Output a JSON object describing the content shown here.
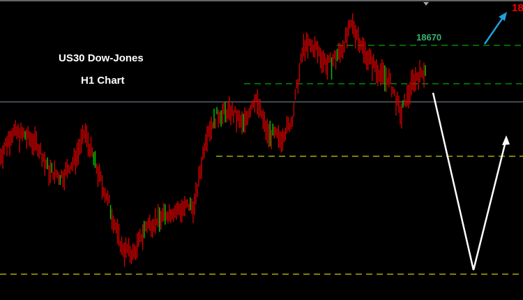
{
  "chart_data": {
    "type": "candlestick",
    "symbol_label": "US30 Dow-Jones",
    "timeframe_label": "H1 Chart",
    "ylim": [
      17210,
      18930
    ],
    "price_path_keypoints": [
      18050,
      18190,
      18170,
      18130,
      17970,
      17930,
      18010,
      18190,
      17970,
      17770,
      17530,
      17490,
      17650,
      17690,
      17730,
      17750,
      17770,
      18190,
      18290,
      18310,
      18230,
      18390,
      18190,
      18150,
      18250,
      18690,
      18670,
      18570,
      18650,
      18810,
      18650,
      18550,
      18490,
      18290,
      18490,
      18550
    ],
    "colors": {
      "bear": "#cc0000",
      "bull": "#00cc00",
      "support": "#cccc00",
      "resistance": "#00aa00",
      "bid_line": "#8090a0",
      "projection": "#ffffff",
      "target_arrow": "#1ea0e0",
      "level_label": "#3cb371",
      "target_label": "#ff0000"
    },
    "levels": [
      {
        "price": 18670,
        "type": "resistance",
        "label": "18670"
      },
      {
        "price": 18450,
        "type": "resistance"
      },
      {
        "price": 18034,
        "type": "support"
      },
      {
        "price": 17358,
        "type": "support"
      }
    ],
    "bid_price_line": 18346,
    "target_label": "18",
    "projection": "down to lower support then up"
  }
}
